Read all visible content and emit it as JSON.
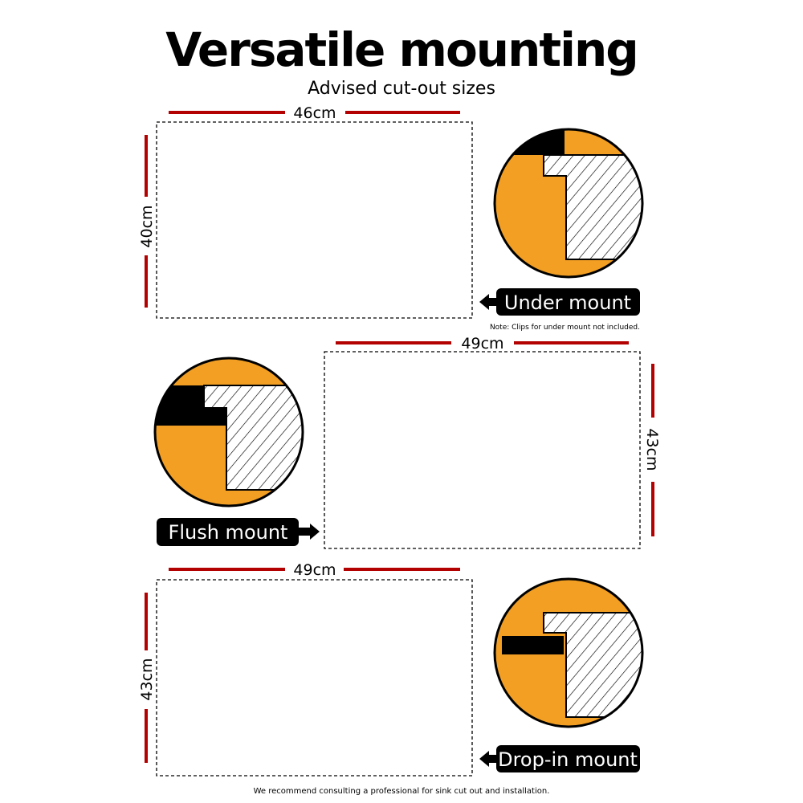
{
  "header": {
    "title": "Versatile mounting",
    "subtitle": "Advised cut-out sizes"
  },
  "colors": {
    "dimension_line": "#b30000",
    "accent_orange": "#f29f24",
    "label_bg": "#000000"
  },
  "sections": [
    {
      "mount_label": "Under mount",
      "width_label": "46cm",
      "height_label": "40cm",
      "note": "Note: Clips for under mount not included.",
      "arrow": "arrow-left-icon"
    },
    {
      "mount_label": "Flush mount",
      "width_label": "49cm",
      "height_label": "43cm",
      "arrow": "arrow-right-icon"
    },
    {
      "mount_label": "Drop-in mount",
      "width_label": "49cm",
      "height_label": "43cm",
      "arrow": "arrow-left-icon"
    }
  ],
  "footer": {
    "text": "We recommend consulting a professional for sink cut out and installation."
  }
}
